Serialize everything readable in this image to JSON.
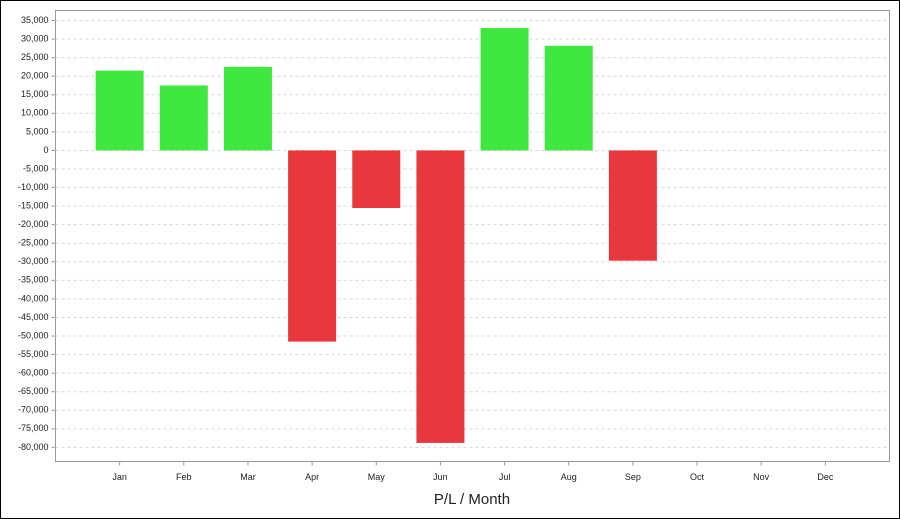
{
  "chart_data": {
    "type": "bar",
    "x_label": "P/L / Month",
    "categories": [
      "Jan",
      "Feb",
      "Mar",
      "Apr",
      "May",
      "Jun",
      "Jul",
      "Aug",
      "Sep",
      "Oct",
      "Nov",
      "Dec"
    ],
    "values": [
      21500,
      17500,
      22500,
      -51500,
      -15500,
      -78800,
      33000,
      28200,
      -29700,
      null,
      null,
      null
    ],
    "positive_color": "#3fe83f",
    "negative_color": "#e8383d",
    "ylim": [
      -83800,
      37700
    ],
    "yticks": [
      {
        "value": 35000,
        "label": "35,000"
      },
      {
        "value": 30000,
        "label": "30,000"
      },
      {
        "value": 25000,
        "label": "25,000"
      },
      {
        "value": 20000,
        "label": "20,000"
      },
      {
        "value": 15000,
        "label": "15,000"
      },
      {
        "value": 10000,
        "label": "10,000"
      },
      {
        "value": 5000,
        "label": "5,000"
      },
      0,
      {
        "value": -5000,
        "label": "-5,000"
      },
      {
        "value": -10000,
        "label": "-10,000"
      },
      {
        "value": -15000,
        "label": "-15,000"
      },
      {
        "value": -20000,
        "label": "-20,000"
      },
      {
        "value": -25000,
        "label": "-25,000"
      },
      {
        "value": -30000,
        "label": "-30,000"
      },
      {
        "value": -35000,
        "label": "-35,000"
      },
      {
        "value": -40000,
        "label": "-40,000"
      },
      {
        "value": -45000,
        "label": "-45,000"
      },
      {
        "value": -50000,
        "label": "-50,000"
      },
      {
        "value": -55000,
        "label": "-55,000"
      },
      {
        "value": -60000,
        "label": "-60,000"
      },
      {
        "value": -65000,
        "label": "-65,000"
      },
      {
        "value": -70000,
        "label": "-70,000"
      },
      {
        "value": -75000,
        "label": "-75,000"
      },
      {
        "value": -80000,
        "label": "-80,000"
      }
    ],
    "grid": true
  }
}
